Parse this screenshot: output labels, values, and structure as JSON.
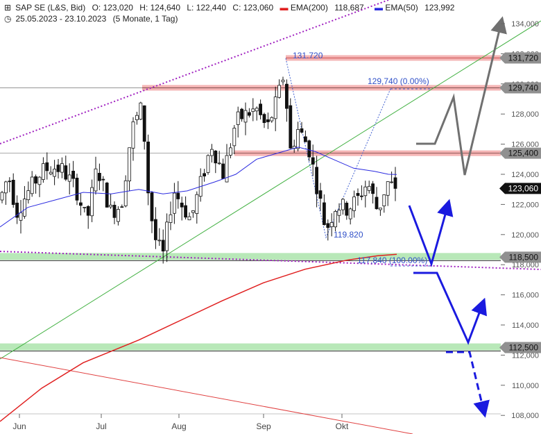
{
  "header": {
    "symbol": "SAP SE (L&S, Bid)",
    "open": "O: 123,020",
    "high": "H: 124,640",
    "low": "L: 122,440",
    "close": "C: 123,060",
    "ema200_label": "EMA(200)",
    "ema200_value": "118,687",
    "ema50_label": "EMA(50)",
    "ema50_value": "123,992",
    "range": "25.05.2023 - 23.10.2023",
    "interval": "(5 Monate, 1 Tag)"
  },
  "colors": {
    "ema200": "#e02020",
    "ema50": "#2a2ae0",
    "trend_channel": "#a020c0",
    "support_zone": "#b8e8b8",
    "resistance_zone": "#f4b4b4",
    "projection_blue": "#1a1adf",
    "projection_grey": "#707070",
    "uptrend": "#40b040",
    "current_price_badge": "#111111"
  },
  "chart_data": {
    "type": "candlestick",
    "x_axis": {
      "tick_labels": [
        "Jun",
        "Jul",
        "Aug",
        "Sep",
        "Okt"
      ]
    },
    "y_axis": {
      "range": [
        107.5,
        134.5
      ],
      "tick_labels": [
        "134,000",
        "132,000",
        "130,000",
        "128,000",
        "126,000",
        "124,000",
        "122,000",
        "120,000",
        "118,000",
        "116,000",
        "114,000",
        "112,000",
        "110,000",
        "108,000"
      ]
    },
    "current_price": 123.06,
    "current_price_label": "123,060",
    "horizontal_levels": [
      {
        "value": 131.72,
        "label": "131,720",
        "style": "resistance"
      },
      {
        "value": 129.74,
        "label": "129,740",
        "style": "resistance"
      },
      {
        "value": 125.4,
        "label": "125,400",
        "style": "resistance"
      },
      {
        "value": 118.5,
        "label": "118,500",
        "style": "support"
      },
      {
        "value": 112.5,
        "label": "112,500",
        "style": "support"
      }
    ],
    "annotations": [
      {
        "text": "131.720"
      },
      {
        "text": "129,740 (0.00%)"
      },
      {
        "text": "119.820"
      },
      {
        "text": "117,840 (100.00%)"
      }
    ],
    "ema50_end": 123.992,
    "ema200_end": 118.687
  }
}
